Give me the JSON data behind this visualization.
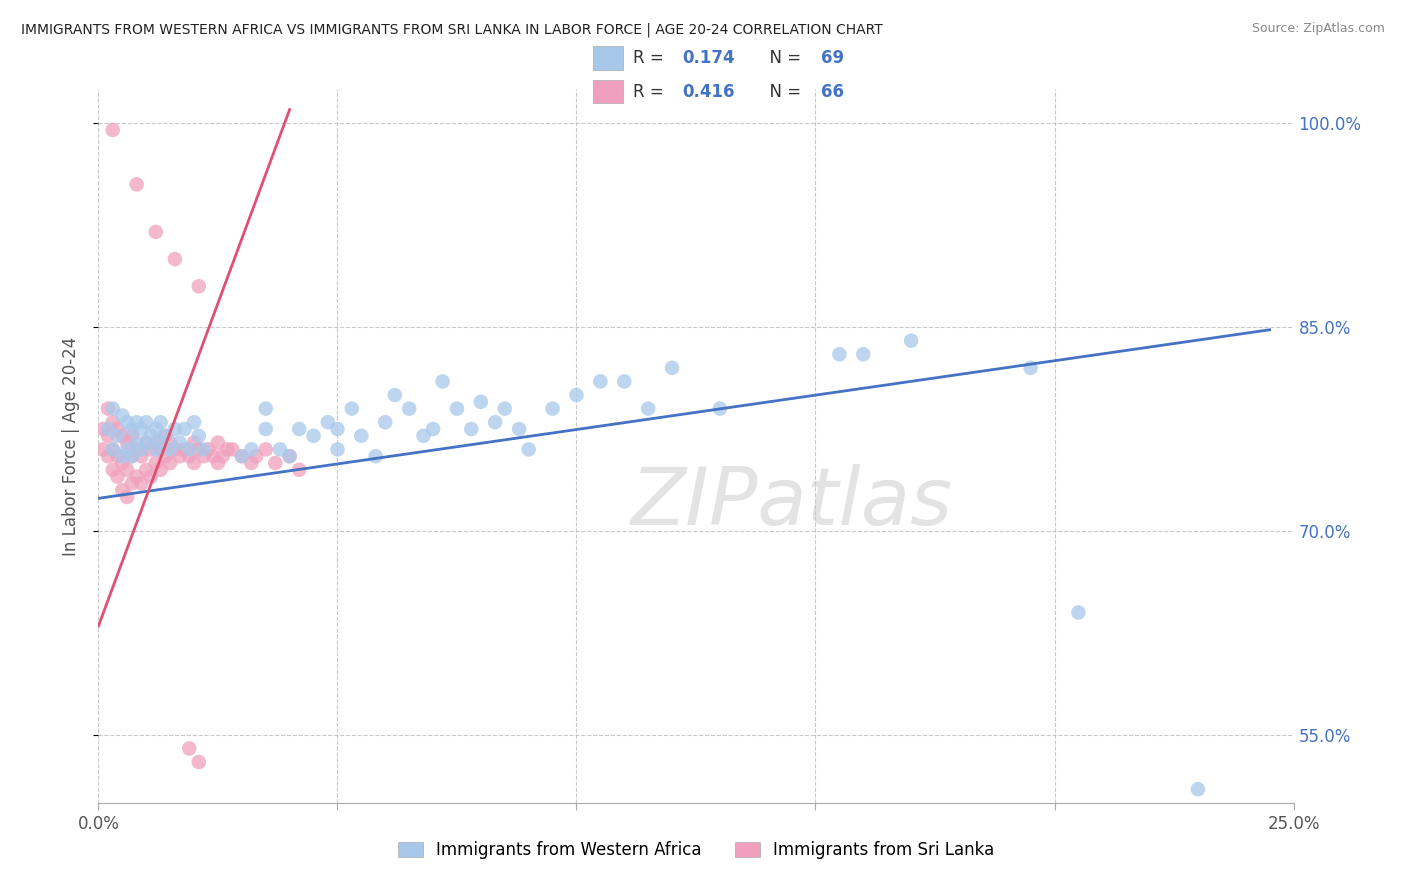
{
  "title": "IMMIGRANTS FROM WESTERN AFRICA VS IMMIGRANTS FROM SRI LANKA IN LABOR FORCE | AGE 20-24 CORRELATION CHART",
  "source": "Source: ZipAtlas.com",
  "ylabel": "In Labor Force | Age 20-24",
  "watermark": "ZIPatlas",
  "xlim": [
    0.0,
    0.25
  ],
  "ylim": [
    0.5,
    1.025
  ],
  "yticks_right": [
    0.55,
    0.7,
    0.85,
    1.0
  ],
  "ytick_labels_right": [
    "55.0%",
    "70.0%",
    "85.0%",
    "100.0%"
  ],
  "xtick_positions": [
    0.0,
    0.05,
    0.1,
    0.15,
    0.2,
    0.25
  ],
  "xtick_labels": [
    "0.0%",
    "",
    "",
    "",
    "",
    "25.0%"
  ],
  "legend_blue_r": "0.174",
  "legend_blue_n": "69",
  "legend_pink_r": "0.416",
  "legend_pink_n": "66",
  "blue_color": "#A8C8EA",
  "pink_color": "#F0A0BC",
  "blue_line_color": "#4472C4",
  "pink_line_color": "#E05070",
  "legend_label_blue": "Immigrants from Western Africa",
  "legend_label_pink": "Immigrants from Sri Lanka",
  "background_color": "#FFFFFF",
  "grid_color": "#CCCCCC",
  "blue_trend_x0": 0.0,
  "blue_trend_y0": 0.724,
  "blue_trend_x1": 0.245,
  "blue_trend_y1": 0.848,
  "pink_trend_x0": 0.0,
  "pink_trend_y0": 0.63,
  "pink_trend_x1": 0.04,
  "pink_trend_y1": 1.01
}
